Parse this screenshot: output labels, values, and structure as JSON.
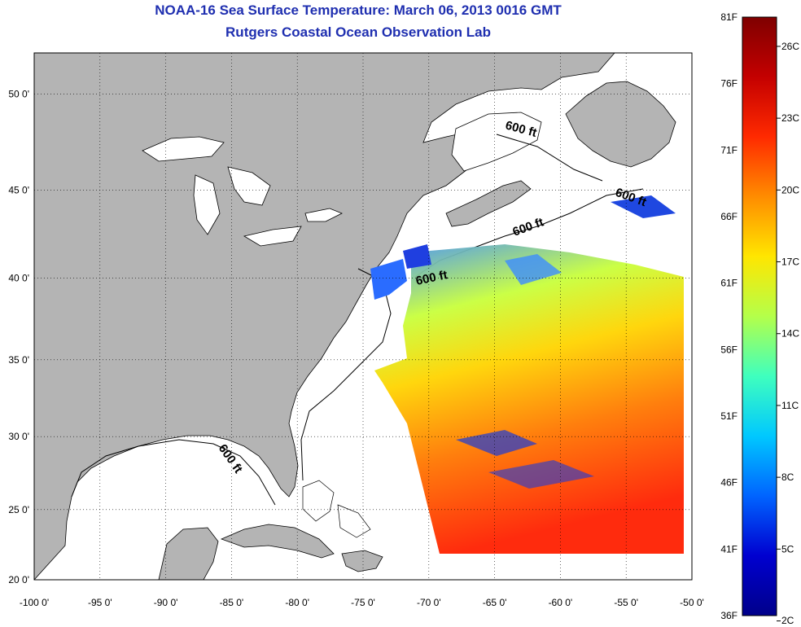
{
  "header": {
    "title": "NOAA-16 Sea Surface Temperature:  March 06, 2013 0016 GMT",
    "subtitle": "Rutgers Coastal Ocean Observation Lab"
  },
  "map": {
    "extent": {
      "lon": [
        -100,
        -50
      ],
      "lat": [
        20,
        52
      ]
    },
    "land_color": "#b4b4b4",
    "ocean_color": "#ffffff",
    "grid": "dotted",
    "lon_ticks": [
      "-100 0'",
      "-95 0'",
      "-90 0'",
      "-85 0'",
      "-80 0'",
      "-75 0'",
      "-70 0'",
      "-65 0'",
      "-60 0'",
      "-55 0'",
      "-50 0'"
    ],
    "lat_ticks": [
      "20 0'",
      "25 0'",
      "30 0'",
      "35 0'",
      "40 0'",
      "45 0'",
      "50 0'"
    ],
    "contour_labels": [
      "600 ft",
      "600 ft",
      "600 ft",
      "600 ft",
      "600 ft"
    ]
  },
  "colorbar": {
    "f_labels": [
      "81F",
      "76F",
      "71F",
      "66F",
      "61F",
      "56F",
      "51F",
      "46F",
      "41F",
      "36F"
    ],
    "c_labels": [
      "26C",
      "23C",
      "20C",
      "17C",
      "14C",
      "11C",
      "8C",
      "5C",
      "2C"
    ],
    "colors": [
      "#7f0000",
      "#c40000",
      "#ff2a00",
      "#ff8c00",
      "#ffe600",
      "#b4ff4a",
      "#3fffbe",
      "#00c8ff",
      "#0064ff",
      "#0000d0",
      "#00008a"
    ]
  }
}
